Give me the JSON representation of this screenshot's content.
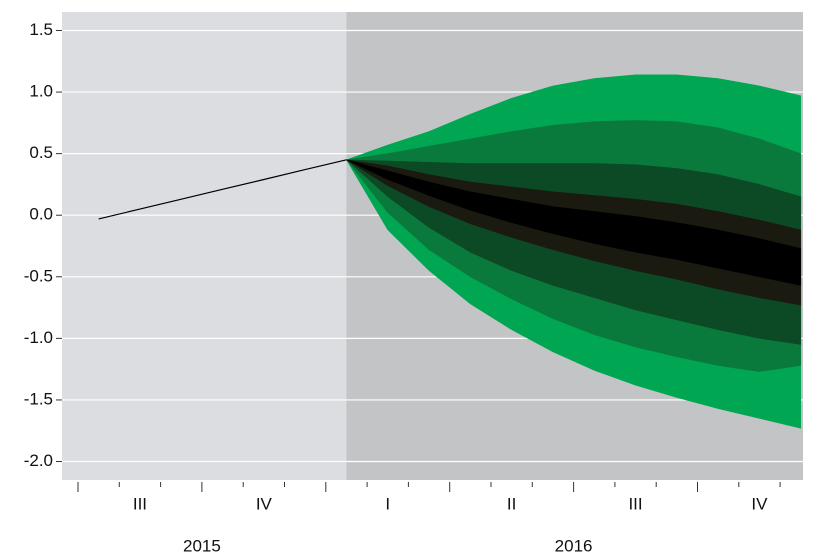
{
  "chart_data": {
    "type": "fan",
    "categories": [
      null,
      "III",
      null,
      null,
      "IV",
      null,
      null,
      "I",
      null,
      null,
      "II",
      null,
      null,
      "III",
      null,
      null,
      "IV",
      null
    ],
    "years": [
      {
        "label": "2015",
        "months": 6
      },
      {
        "label": "2016",
        "months": 12
      }
    ],
    "forecast_start": 6,
    "ylim": [
      -2.15,
      1.65
    ],
    "yticks": [
      1.5,
      {
        "value": 1,
        "label": "1.0"
      },
      0.5,
      {
        "value": 0,
        "label": "0.0"
      },
      -0.5,
      {
        "value": -1,
        "label": "-1.0"
      },
      -1.5,
      {
        "value": -2,
        "label": "-2.0"
      }
    ],
    "grid": true,
    "history": {
      "color": "#000000",
      "values": [
        -0.03,
        0.05,
        0.13,
        0.21,
        0.29,
        0.37,
        0.45,
        null,
        null,
        null,
        null,
        null,
        null,
        null,
        null,
        null,
        null,
        null
      ]
    },
    "bands": [
      {
        "color": "#00a651",
        "upper": [
          null,
          null,
          null,
          null,
          null,
          null,
          0.45,
          0.57,
          0.68,
          0.82,
          0.95,
          1.05,
          1.11,
          1.14,
          1.14,
          1.11,
          1.05,
          0.97
        ],
        "lower": [
          null,
          null,
          null,
          null,
          null,
          null,
          0.45,
          -0.12,
          -0.45,
          -0.72,
          -0.93,
          -1.11,
          -1.26,
          -1.38,
          -1.48,
          -1.57,
          -1.65,
          -1.73
        ]
      },
      {
        "color": "#0a7a3c",
        "upper": [
          null,
          null,
          null,
          null,
          null,
          null,
          0.45,
          0.5,
          0.56,
          0.62,
          0.68,
          0.73,
          0.76,
          0.77,
          0.76,
          0.71,
          0.62,
          0.5
        ],
        "lower": [
          null,
          null,
          null,
          null,
          null,
          null,
          0.45,
          0.02,
          -0.28,
          -0.5,
          -0.68,
          -0.84,
          -0.97,
          -1.07,
          -1.15,
          -1.22,
          -1.27,
          -1.22
        ]
      },
      {
        "color": "#0b4a25",
        "upper": [
          null,
          null,
          null,
          null,
          null,
          null,
          0.45,
          0.44,
          0.43,
          0.42,
          0.42,
          0.42,
          0.42,
          0.41,
          0.38,
          0.33,
          0.25,
          0.15
        ],
        "lower": [
          null,
          null,
          null,
          null,
          null,
          null,
          0.45,
          0.15,
          -0.1,
          -0.3,
          -0.45,
          -0.57,
          -0.67,
          -0.77,
          -0.85,
          -0.93,
          -1.0,
          -1.05
        ]
      },
      {
        "color": "#1a1a10",
        "upper": [
          null,
          null,
          null,
          null,
          null,
          null,
          0.45,
          0.4,
          0.33,
          0.27,
          0.23,
          0.19,
          0.16,
          0.13,
          0.09,
          0.03,
          -0.04,
          -0.12
        ],
        "lower": [
          null,
          null,
          null,
          null,
          null,
          null,
          0.45,
          0.24,
          0.07,
          -0.07,
          -0.18,
          -0.28,
          -0.37,
          -0.45,
          -0.52,
          -0.6,
          -0.67,
          -0.73
        ]
      },
      {
        "color": "#000000",
        "upper": [
          null,
          null,
          null,
          null,
          null,
          null,
          0.45,
          0.36,
          0.27,
          0.19,
          0.13,
          0.07,
          0.03,
          -0.01,
          -0.06,
          -0.12,
          -0.19,
          -0.27
        ],
        "lower": [
          null,
          null,
          null,
          null,
          null,
          null,
          0.45,
          0.29,
          0.16,
          0.04,
          -0.06,
          -0.15,
          -0.23,
          -0.3,
          -0.36,
          -0.43,
          -0.5,
          -0.57
        ]
      }
    ]
  }
}
